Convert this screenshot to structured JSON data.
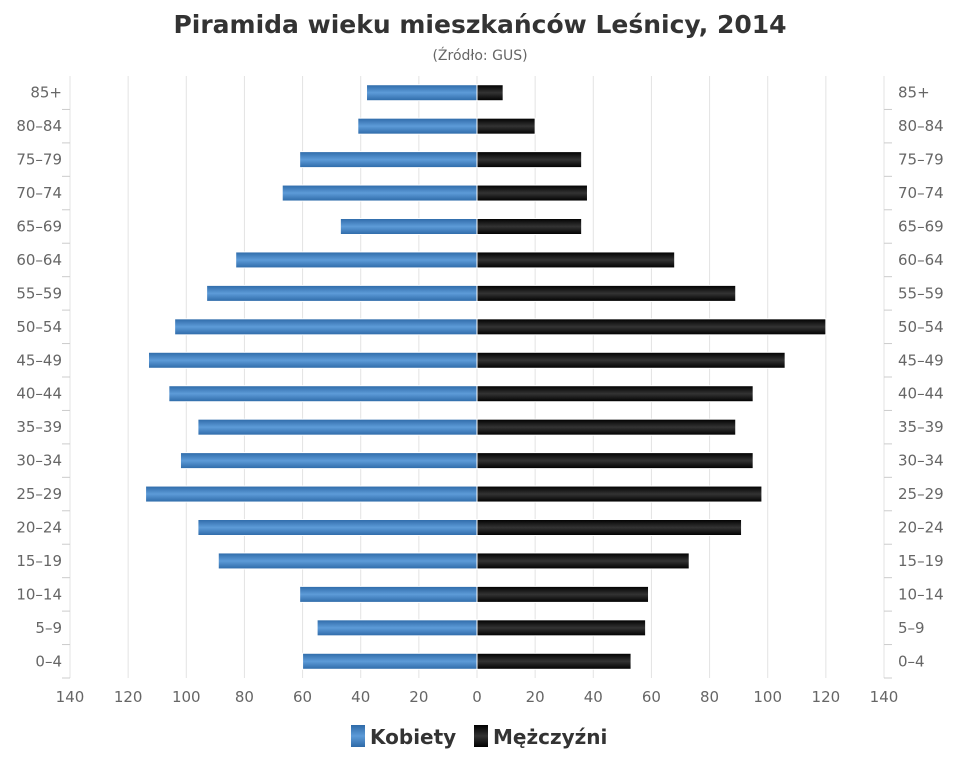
{
  "chart_data": {
    "type": "bar",
    "orientation": "horizontal-pyramid",
    "title": "Piramida wieku mieszkańców Leśnicy, 2014",
    "subtitle": "(Źródło: GUS)",
    "categories": [
      "0–4",
      "5–9",
      "10–14",
      "15–19",
      "20–24",
      "25–29",
      "30–34",
      "35–39",
      "40–44",
      "45–49",
      "50–54",
      "55–59",
      "60–64",
      "65–69",
      "70–74",
      "75–79",
      "80–84",
      "85+"
    ],
    "series": [
      {
        "name": "Kobiety",
        "color": "#3f7fc0",
        "side": "left",
        "values": [
          60,
          55,
          61,
          89,
          96,
          114,
          102,
          96,
          106,
          113,
          104,
          93,
          83,
          47,
          67,
          61,
          41,
          38
        ]
      },
      {
        "name": "Mężczyźni",
        "color": "#111111",
        "side": "right",
        "values": [
          53,
          58,
          59,
          73,
          91,
          98,
          95,
          89,
          95,
          106,
          120,
          89,
          68,
          36,
          38,
          36,
          20,
          9
        ]
      }
    ],
    "xlim": [
      -140,
      140
    ],
    "xticks": [
      "140",
      "120",
      "100",
      "80",
      "60",
      "40",
      "20",
      "0",
      "20",
      "40",
      "60",
      "80",
      "100",
      "120",
      "140"
    ],
    "grid": true,
    "legend": "bottom"
  }
}
